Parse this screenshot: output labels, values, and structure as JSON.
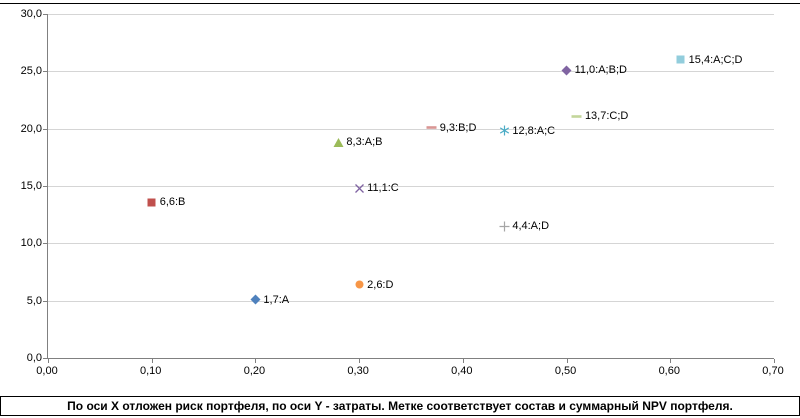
{
  "caption": "По оси X отложен риск портфеля, по оси Y - затраты. Метке соответствует состав и суммарный NPV портфеля.",
  "chart_data": {
    "type": "scatter",
    "title": "",
    "xlabel": "риск портфеля",
    "ylabel": "затраты",
    "xlim": [
      0,
      0.7
    ],
    "ylim": [
      0,
      30
    ],
    "grid": "horizontal",
    "legend": "none",
    "x_ticks": [
      [
        0,
        "0,00"
      ],
      [
        0.1,
        "0,10"
      ],
      [
        0.2,
        "0,20"
      ],
      [
        0.3,
        "0,30"
      ],
      [
        0.4,
        "0,40"
      ],
      [
        0.5,
        "0,50"
      ],
      [
        0.6,
        "0,60"
      ],
      [
        0.7,
        "0,70"
      ]
    ],
    "y_ticks": [
      [
        0,
        "0,0"
      ],
      [
        5,
        "5,0"
      ],
      [
        10,
        "10,0"
      ],
      [
        15,
        "15,0"
      ],
      [
        20,
        "20,0"
      ],
      [
        25,
        "25,0"
      ],
      [
        30,
        "30,0"
      ]
    ],
    "points": [
      {
        "x": 0.2,
        "y": 5.1,
        "label": "1,7:A",
        "marker": "diamond",
        "color": "#4F81BD"
      },
      {
        "x": 0.1,
        "y": 13.6,
        "label": "6,6:B",
        "marker": "square",
        "color": "#C0504D"
      },
      {
        "x": 0.3,
        "y": 14.8,
        "label": "11,1:C",
        "marker": "x",
        "color": "#8064A2"
      },
      {
        "x": 0.3,
        "y": 6.4,
        "label": "2,6:D",
        "marker": "circle",
        "color": "#F79646"
      },
      {
        "x": 0.28,
        "y": 18.8,
        "label": "8,3:A;B",
        "marker": "triangle",
        "color": "#9BBB59"
      },
      {
        "x": 0.37,
        "y": 20.1,
        "label": "9,3:B;D",
        "marker": "dash",
        "color": "#D99694"
      },
      {
        "x": 0.44,
        "y": 19.8,
        "label": "12,8:A;C",
        "marker": "asterisk",
        "color": "#4BACC6"
      },
      {
        "x": 0.51,
        "y": 21.1,
        "label": "13,7:C;D",
        "marker": "dash",
        "color": "#C3D69B"
      },
      {
        "x": 0.5,
        "y": 25.1,
        "label": "11,0:A;B;D",
        "marker": "diamond",
        "color": "#8064A2"
      },
      {
        "x": 0.61,
        "y": 26.0,
        "label": "15,4:A;C;D",
        "marker": "square",
        "color": "#92CDDC"
      },
      {
        "x": 0.44,
        "y": 11.5,
        "label": "4,4:A;D",
        "marker": "plus",
        "color": "#A6A6A6"
      }
    ]
  }
}
